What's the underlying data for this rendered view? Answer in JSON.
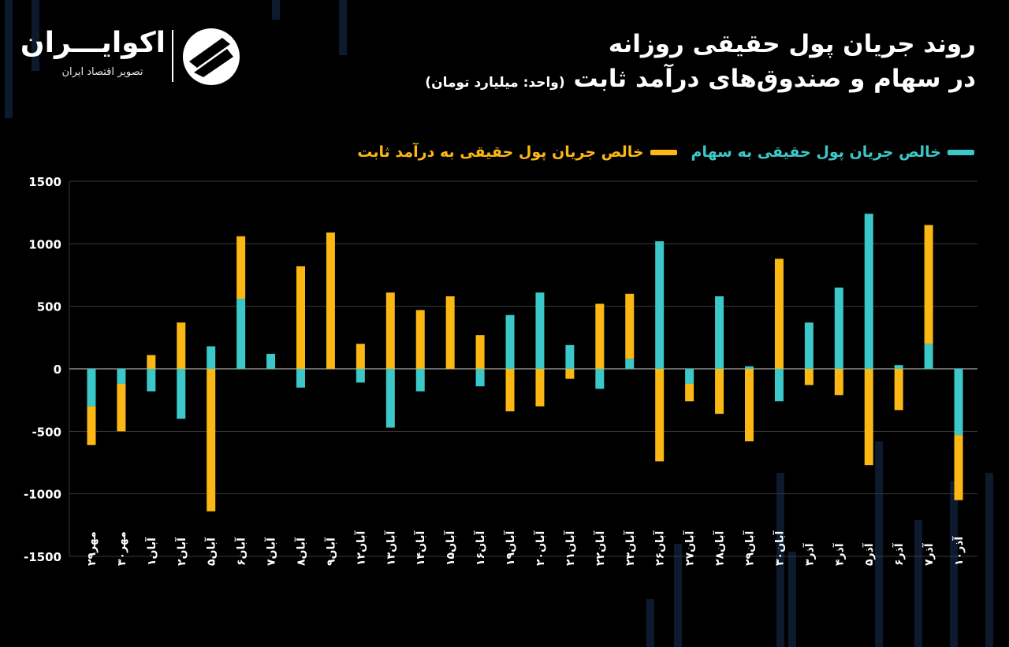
{
  "header": {
    "title_line1": "روند جریان پول حقیقی روزانه",
    "title_line2": "در سهام و صندوق‌های درآمد ثابت",
    "unit": "(واحد: میلیارد تومان)"
  },
  "logo": {
    "name": "اکوایـــران",
    "tagline": "تصویر اقتصاد ایران"
  },
  "colors": {
    "background": "#000000",
    "stocks": "#3CC8C8",
    "fixed_income": "#FBB713",
    "grid": "#3a3a3a",
    "text": "#ffffff"
  },
  "chart_data": {
    "type": "bar",
    "stacked": true,
    "categories": [
      "مهر۲۹",
      "مهر۳۰",
      "آبان۱",
      "آبان۲",
      "آبان۵",
      "آبان۶",
      "آبان۷",
      "آبان۸",
      "آبان۹",
      "آبان۱۲",
      "آبان۱۳",
      "آبان۱۴",
      "آبان۱۵",
      "آبان۱۶",
      "آبان۱۹",
      "آبان۲۰",
      "آبان۲۱",
      "آبان۲۲",
      "آبان۲۳",
      "آبان۲۶",
      "آبان۲۷",
      "آبان۲۸",
      "آبان۲۹",
      "آبان۳۰",
      "آذر۳",
      "آذر۴",
      "آذر۵",
      "آذر۶",
      "آذر۷",
      "آذر۱۰"
    ],
    "series": [
      {
        "name": "خالص جریان پول حقیقی به سهام",
        "color_key": "stocks",
        "values": [
          -300,
          -120,
          -180,
          -400,
          180,
          560,
          120,
          -150,
          0,
          -110,
          -470,
          -180,
          0,
          -140,
          430,
          610,
          190,
          -160,
          80,
          1020,
          -120,
          580,
          20,
          -260,
          370,
          650,
          1240,
          30,
          200,
          -530
        ]
      },
      {
        "name": "خالص جریان پول حقیقی به درآمد ثابت",
        "color_key": "fixed_income",
        "values": [
          -310,
          -380,
          110,
          370,
          -1140,
          500,
          0,
          820,
          1090,
          200,
          610,
          470,
          580,
          270,
          -340,
          -300,
          -80,
          520,
          520,
          -740,
          -140,
          -360,
          -580,
          880,
          -130,
          -210,
          -770,
          -330,
          950,
          -520
        ]
      }
    ],
    "ylim": [
      -1500,
      1500
    ],
    "yticks": [
      1500,
      1000,
      500,
      0,
      -500,
      -1000,
      -1500
    ],
    "ytick_labels": [
      "1500",
      "1000",
      "500",
      "0",
      "-500",
      "-1000",
      "-1500"
    ],
    "grid": true,
    "legend_position": "top-right"
  }
}
